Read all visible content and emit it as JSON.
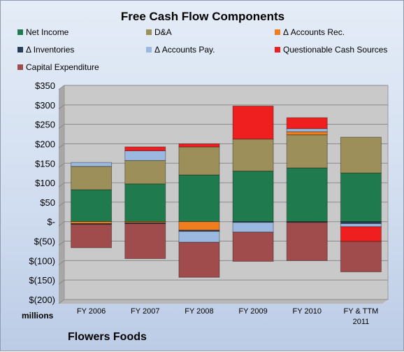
{
  "chart_data": {
    "type": "bar",
    "stacked": true,
    "title": "Free Cash Flow Components",
    "categories": [
      "FY 2006",
      "FY 2007",
      "FY 2008",
      "FY 2009",
      "FY 2010",
      "FY & TTM 2011"
    ],
    "ylim": [
      -200,
      350
    ],
    "yticks": [
      350,
      300,
      250,
      200,
      150,
      100,
      50,
      0,
      -50,
      -100,
      -150,
      -200
    ],
    "ytick_labels": [
      "$350",
      "$300",
      "$250",
      "$200",
      "$150",
      "$100",
      "$50",
      "$-",
      "$(50)",
      "$(100)",
      "$(150)",
      "$(200)"
    ],
    "units_label": "millions",
    "grid": true,
    "legend_placement": "top",
    "series": [
      {
        "name": "Net Income",
        "color": "#1f7a4d",
        "values": [
          82,
          97,
          120,
          130,
          138,
          125
        ]
      },
      {
        "name": "D&A",
        "color": "#9c8f5a",
        "values": [
          60,
          60,
          72,
          82,
          85,
          92
        ]
      },
      {
        "name": "Δ Accounts Rec.",
        "color": "#f07e1e",
        "values": [
          -5,
          -3,
          -22,
          0,
          8,
          0
        ]
      },
      {
        "name": "Δ Inventories",
        "color": "#263d59",
        "values": [
          -2,
          -2,
          -3,
          -2,
          -2,
          -5
        ]
      },
      {
        "name": "Δ Accounts Pay.",
        "color": "#9bb8e0",
        "values": [
          10,
          25,
          -28,
          -25,
          8,
          -8
        ]
      },
      {
        "name": "Questionable Cash Sources",
        "color": "#f01f1f",
        "values": [
          0,
          10,
          8,
          85,
          28,
          -38
        ]
      },
      {
        "name": "Capital Expenditure",
        "color": "#a04c4c",
        "values": [
          -60,
          -90,
          -90,
          -75,
          -98,
          -78
        ]
      }
    ]
  },
  "footer": {
    "company": "Flowers Foods"
  }
}
